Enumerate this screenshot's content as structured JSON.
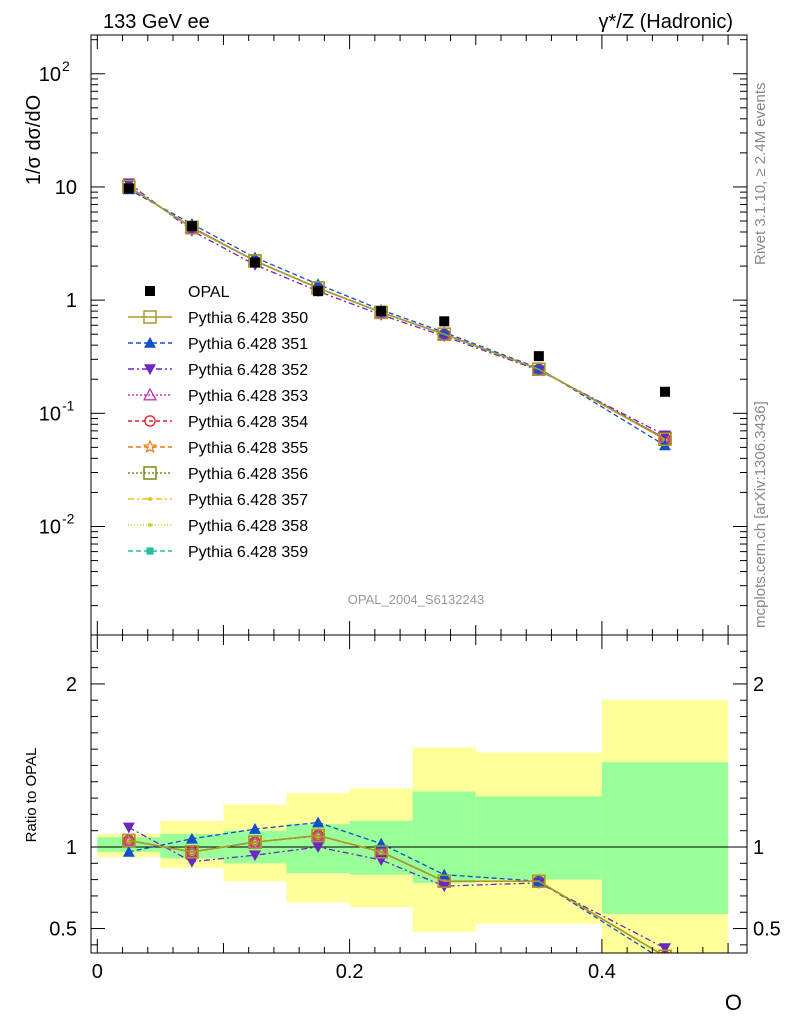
{
  "header": {
    "left": "133 GeV ee",
    "right": "γ*/Z (Hadronic)"
  },
  "side_labels": {
    "rivet": "Rivet 3.1.10, ≥ 2.4M events",
    "mcplots": "mcplots.cern.ch [arXiv:1306.3436]"
  },
  "analysis_id": "OPAL_2004_S6132243",
  "axes": {
    "top_ylabel": "1/σ dσ/dO",
    "ratio_ylabel": "Ratio to OPAL",
    "xlabel": "O"
  },
  "chart_data": [
    {
      "type": "scatter",
      "panel": "main",
      "yscale": "log",
      "xlim": [
        -0.005,
        0.515
      ],
      "ylim": [
        0.0011,
        220
      ],
      "ytick_labels": [
        "10^-2",
        "10^-1",
        "1",
        "10",
        "10^2"
      ],
      "x": [
        0.025,
        0.075,
        0.125,
        0.175,
        0.225,
        0.275,
        0.35,
        0.45
      ],
      "data": {
        "name": "OPAL",
        "values": [
          9.7,
          4.5,
          2.15,
          1.2,
          0.8,
          0.65,
          0.32,
          0.155
        ]
      },
      "series": [
        {
          "name": "Pythia 6.428 350",
          "color": "#a89a2a",
          "dash": "",
          "marker": "square-open",
          "values": [
            10.1,
            4.35,
            2.22,
            1.28,
            0.78,
            0.5,
            0.245,
            0.059
          ]
        },
        {
          "name": "Pythia 6.428 351",
          "color": "#1150c8",
          "dash": "5,3",
          "marker": "triangle-up",
          "values": [
            9.5,
            4.7,
            2.38,
            1.38,
            0.82,
            0.52,
            0.25,
            0.052
          ]
        },
        {
          "name": "Pythia 6.428 352",
          "color": "#6a27c4",
          "dash": "6,3,2,3",
          "marker": "triangle-down",
          "values": [
            10.8,
            4.1,
            2.05,
            1.2,
            0.74,
            0.48,
            0.24,
            0.064
          ]
        },
        {
          "name": "Pythia 6.428 353",
          "color": "#c836b0",
          "dash": "2,2",
          "marker": "triangle-open",
          "values": [
            10.0,
            4.4,
            2.22,
            1.28,
            0.78,
            0.5,
            0.245,
            0.06
          ]
        },
        {
          "name": "Pythia 6.428 354",
          "color": "#e0202a",
          "dash": "4,3",
          "marker": "circle-open",
          "values": [
            10.0,
            4.4,
            2.22,
            1.28,
            0.78,
            0.5,
            0.245,
            0.06
          ]
        },
        {
          "name": "Pythia 6.428 355",
          "color": "#f07a1a",
          "dash": "5,3",
          "marker": "star-open",
          "values": [
            10.0,
            4.4,
            2.22,
            1.28,
            0.78,
            0.5,
            0.245,
            0.06
          ]
        },
        {
          "name": "Pythia 6.428 356",
          "color": "#7a8a10",
          "dash": "2,2",
          "marker": "square-open",
          "values": [
            10.0,
            4.4,
            2.22,
            1.28,
            0.78,
            0.5,
            0.245,
            0.06
          ]
        },
        {
          "name": "Pythia 6.428 357",
          "color": "#e8c020",
          "dash": "6,3,2,3",
          "marker": "dot",
          "values": [
            10.0,
            4.4,
            2.22,
            1.28,
            0.78,
            0.5,
            0.245,
            0.06
          ]
        },
        {
          "name": "Pythia 6.428 358",
          "color": "#c8d818",
          "dash": "1,2",
          "marker": "dot",
          "values": [
            10.0,
            4.4,
            2.22,
            1.28,
            0.78,
            0.5,
            0.245,
            0.06
          ]
        },
        {
          "name": "Pythia 6.428 359",
          "color": "#20c0a0",
          "dash": "5,3",
          "marker": "square",
          "values": [
            10.0,
            4.4,
            2.22,
            1.28,
            0.78,
            0.5,
            0.245,
            0.06
          ]
        }
      ],
      "legend": "left"
    },
    {
      "type": "line",
      "panel": "ratio",
      "xlim": [
        -0.005,
        0.515
      ],
      "ylim": [
        0.35,
        2.3
      ],
      "yticks": [
        0.5,
        1,
        2
      ],
      "ytick_labels": [
        "0.5",
        "1",
        "2"
      ],
      "xticks": [
        0,
        0.2,
        0.4
      ],
      "xtick_labels": [
        "0",
        "0.2",
        "0.4"
      ],
      "x": [
        0.025,
        0.075,
        0.125,
        0.175,
        0.225,
        0.275,
        0.35,
        0.45
      ],
      "bands": {
        "edges": [
          0.0,
          0.05,
          0.1,
          0.15,
          0.2,
          0.25,
          0.3,
          0.4,
          0.5
        ],
        "total_low": [
          0.94,
          0.87,
          0.79,
          0.66,
          0.63,
          0.48,
          0.53,
          0.35
        ],
        "total_high": [
          1.08,
          1.16,
          1.26,
          1.33,
          1.36,
          1.61,
          1.58,
          1.9
        ],
        "stat_low": [
          0.97,
          0.93,
          0.9,
          0.84,
          0.83,
          0.78,
          0.8,
          0.59
        ],
        "stat_high": [
          1.06,
          1.08,
          1.1,
          1.14,
          1.16,
          1.34,
          1.31,
          1.52
        ]
      },
      "series": [
        {
          "name": "Pythia 6.428 350",
          "values": [
            1.04,
            0.97,
            1.03,
            1.07,
            0.97,
            0.79,
            0.79,
            0.33
          ]
        },
        {
          "name": "Pythia 6.428 351",
          "values": [
            0.97,
            1.05,
            1.11,
            1.15,
            1.02,
            0.83,
            0.79,
            0.3
          ]
        },
        {
          "name": "Pythia 6.428 352",
          "values": [
            1.12,
            0.91,
            0.95,
            1.0,
            0.92,
            0.76,
            0.78,
            0.38
          ]
        },
        {
          "name": "Pythia 6.428 353",
          "values": [
            1.04,
            0.97,
            1.03,
            1.07,
            0.97,
            0.79,
            0.79,
            0.33
          ]
        },
        {
          "name": "Pythia 6.428 354",
          "values": [
            1.04,
            0.97,
            1.03,
            1.07,
            0.97,
            0.79,
            0.79,
            0.33
          ]
        },
        {
          "name": "Pythia 6.428 355",
          "values": [
            1.04,
            0.97,
            1.03,
            1.07,
            0.97,
            0.79,
            0.79,
            0.33
          ]
        },
        {
          "name": "Pythia 6.428 356",
          "values": [
            1.04,
            0.97,
            1.03,
            1.07,
            0.97,
            0.79,
            0.79,
            0.33
          ]
        },
        {
          "name": "Pythia 6.428 357",
          "values": [
            1.04,
            0.97,
            1.03,
            1.07,
            0.97,
            0.79,
            0.79,
            0.33
          ]
        },
        {
          "name": "Pythia 6.428 358",
          "values": [
            1.04,
            0.97,
            1.03,
            1.07,
            0.97,
            0.79,
            0.79,
            0.33
          ]
        },
        {
          "name": "Pythia 6.428 359",
          "values": [
            1.04,
            0.97,
            1.03,
            1.07,
            0.97,
            0.79,
            0.79,
            0.33
          ]
        }
      ]
    }
  ],
  "colors": {
    "band_total": "#ffff99",
    "band_stat": "#99ff99",
    "data_marker": "#000000"
  }
}
